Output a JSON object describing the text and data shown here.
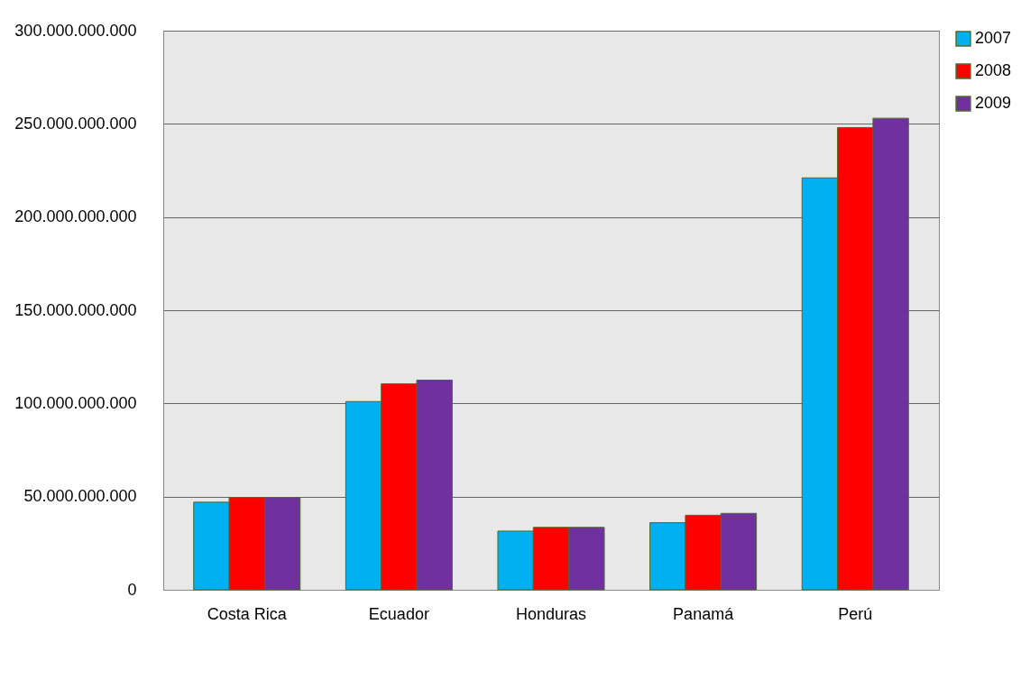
{
  "chart_data": {
    "type": "bar",
    "categories": [
      "Costa Rica",
      "Ecuador",
      "Honduras",
      "Panamá",
      "Perú"
    ],
    "series": [
      {
        "name": "2007",
        "color": "#00b0f0",
        "values": [
          47000000000,
          101000000000,
          31500000000,
          36000000000,
          221000000000
        ]
      },
      {
        "name": "2008",
        "color": "#ff0000",
        "values": [
          49500000000,
          110500000000,
          33500000000,
          40000000000,
          248000000000
        ]
      },
      {
        "name": "2009",
        "color": "#7030a0",
        "values": [
          49500000000,
          112500000000,
          33500000000,
          41000000000,
          253000000000
        ]
      }
    ],
    "ylim": [
      0,
      300000000000
    ],
    "yticks": [
      {
        "value": 0,
        "label": "0"
      },
      {
        "value": 50000000000,
        "label": "50.000.000.000"
      },
      {
        "value": 100000000000,
        "label": "100.000.000.000"
      },
      {
        "value": 150000000000,
        "label": "150.000.000.000"
      },
      {
        "value": 200000000000,
        "label": "200.000.000.000"
      },
      {
        "value": 250000000000,
        "label": "250.000.000.000"
      },
      {
        "value": 300000000000,
        "label": "300.000.000.000"
      }
    ],
    "grid": "y",
    "legend": "right"
  }
}
